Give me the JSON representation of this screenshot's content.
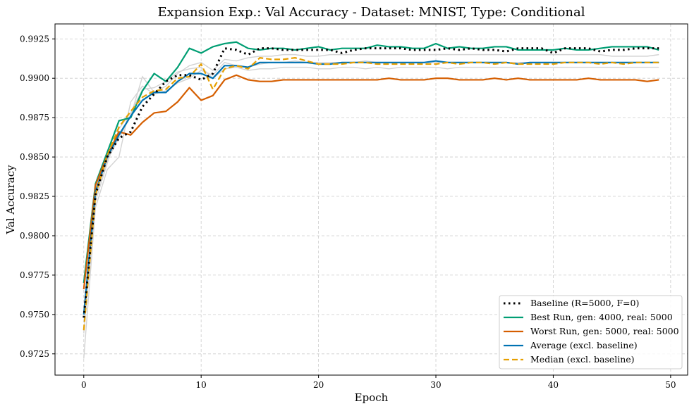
{
  "chart_data": {
    "type": "line",
    "title": "Expansion Exp.: Val Accuracy - Dataset: MNIST, Type: Conditional",
    "xlabel": "Epoch",
    "ylabel": "Val Accuracy",
    "xlim": [
      -2.45,
      51.45
    ],
    "ylim": [
      0.97115,
      0.99345
    ],
    "xticks": [
      0,
      10,
      20,
      30,
      40,
      50
    ],
    "xtick_labels": [
      "0",
      "10",
      "20",
      "30",
      "40",
      "50"
    ],
    "yticks": [
      0.9725,
      0.975,
      0.9775,
      0.98,
      0.9825,
      0.985,
      0.9875,
      0.99,
      0.9925
    ],
    "ytick_labels": [
      "0.9725",
      "0.9750",
      "0.9775",
      "0.9800",
      "0.9825",
      "0.9850",
      "0.9875",
      "0.9900",
      "0.9925"
    ],
    "grid": true,
    "legend_position": "bottom-right",
    "x": [
      0,
      1,
      2,
      3,
      4,
      5,
      6,
      7,
      8,
      9,
      10,
      11,
      12,
      13,
      14,
      15,
      16,
      17,
      18,
      19,
      20,
      21,
      22,
      23,
      24,
      25,
      26,
      27,
      28,
      29,
      30,
      31,
      32,
      33,
      34,
      35,
      36,
      37,
      38,
      39,
      40,
      41,
      42,
      43,
      44,
      45,
      46,
      47,
      48,
      49
    ],
    "background_series": [
      {
        "color": "#d3d3d3",
        "values": [
          0.9722,
          0.9818,
          0.9842,
          0.985,
          0.9885,
          0.9895,
          0.989,
          0.9892,
          0.9897,
          0.99,
          0.9905,
          0.9902,
          0.991,
          0.9908,
          0.9907,
          0.9909,
          0.991,
          0.991,
          0.9911,
          0.991,
          0.991,
          0.991,
          0.991,
          0.991,
          0.9911,
          0.991,
          0.991,
          0.991,
          0.991,
          0.991,
          0.991,
          0.991,
          0.991,
          0.991,
          0.991,
          0.991,
          0.991,
          0.991,
          0.991,
          0.991,
          0.991,
          0.991,
          0.991,
          0.991,
          0.991,
          0.991,
          0.991,
          0.991,
          0.991,
          0.991
        ]
      },
      {
        "color": "#d3d3d3",
        "values": [
          0.9745,
          0.9825,
          0.9848,
          0.9862,
          0.9876,
          0.9901,
          0.9891,
          0.9895,
          0.9903,
          0.9908,
          0.991,
          0.9905,
          0.9912,
          0.9911,
          0.9913,
          0.9914,
          0.9914,
          0.9915,
          0.9915,
          0.9914,
          0.9914,
          0.9915,
          0.9915,
          0.9915,
          0.9915,
          0.9915,
          0.9915,
          0.9915,
          0.9915,
          0.9915,
          0.9915,
          0.9915,
          0.9915,
          0.9915,
          0.9915,
          0.9915,
          0.9915,
          0.9915,
          0.9915,
          0.9915,
          0.9915,
          0.9915,
          0.9915,
          0.9915,
          0.9915,
          0.9914,
          0.9914,
          0.9914,
          0.9914,
          0.9915
        ]
      },
      {
        "color": "#d3d3d3",
        "values": [
          0.9738,
          0.9822,
          0.9846,
          0.9868,
          0.9878,
          0.9893,
          0.9894,
          0.9898,
          0.9904,
          0.9906,
          0.9907,
          0.99,
          0.9906,
          0.9907,
          0.9905,
          0.9906,
          0.9906,
          0.9907,
          0.9907,
          0.9907,
          0.9906,
          0.9906,
          0.9907,
          0.9907,
          0.9906,
          0.9907,
          0.9906,
          0.9907,
          0.9907,
          0.9907,
          0.9907,
          0.9906,
          0.9907,
          0.9907,
          0.9907,
          0.9907,
          0.9907,
          0.9907,
          0.9907,
          0.9907,
          0.9907,
          0.9907,
          0.9907,
          0.9907,
          0.9907,
          0.9907,
          0.9907,
          0.9907,
          0.9907,
          0.9907
        ]
      }
    ],
    "series": [
      {
        "name": "Baseline (R=5000, F=0)",
        "color": "#000000",
        "style": "dotted",
        "values": [
          0.9748,
          0.9826,
          0.985,
          0.9862,
          0.9866,
          0.9882,
          0.989,
          0.9898,
          0.9902,
          0.9902,
          0.9899,
          0.9903,
          0.9919,
          0.9918,
          0.9915,
          0.9919,
          0.9919,
          0.9918,
          0.9918,
          0.9918,
          0.9918,
          0.9918,
          0.9916,
          0.9918,
          0.9919,
          0.9919,
          0.9919,
          0.9919,
          0.9918,
          0.9918,
          0.9918,
          0.9919,
          0.9918,
          0.9919,
          0.9918,
          0.9918,
          0.9917,
          0.9919,
          0.9919,
          0.9919,
          0.9916,
          0.9919,
          0.9919,
          0.9919,
          0.9917,
          0.9918,
          0.9918,
          0.9919,
          0.9919,
          0.9919
        ]
      },
      {
        "name": "Best Run, gen: 4000, real: 5000",
        "color": "#009e73",
        "style": "solid",
        "values": [
          0.977,
          0.9833,
          0.9853,
          0.9873,
          0.9875,
          0.9892,
          0.9903,
          0.9898,
          0.9907,
          0.9919,
          0.9916,
          0.992,
          0.9922,
          0.9923,
          0.9919,
          0.9918,
          0.9919,
          0.9919,
          0.9918,
          0.9919,
          0.992,
          0.9918,
          0.9919,
          0.9919,
          0.9919,
          0.9921,
          0.992,
          0.992,
          0.9919,
          0.9919,
          0.9922,
          0.9919,
          0.992,
          0.9919,
          0.9919,
          0.992,
          0.992,
          0.9918,
          0.9918,
          0.9918,
          0.9918,
          0.9919,
          0.9918,
          0.9918,
          0.9919,
          0.992,
          0.992,
          0.992,
          0.992,
          0.9918
        ]
      },
      {
        "name": "Worst Run, gen: 5000, real: 5000",
        "color": "#d55e00",
        "style": "solid",
        "values": [
          0.9766,
          0.9832,
          0.9851,
          0.9866,
          0.9864,
          0.9872,
          0.9878,
          0.9879,
          0.9885,
          0.9894,
          0.9886,
          0.9889,
          0.9899,
          0.9902,
          0.9899,
          0.9898,
          0.9898,
          0.9899,
          0.9899,
          0.9899,
          0.9899,
          0.9899,
          0.9899,
          0.9899,
          0.9899,
          0.9899,
          0.99,
          0.9899,
          0.9899,
          0.9899,
          0.99,
          0.99,
          0.9899,
          0.9899,
          0.9899,
          0.99,
          0.9899,
          0.99,
          0.9899,
          0.9899,
          0.9899,
          0.9899,
          0.9899,
          0.99,
          0.9899,
          0.9899,
          0.9899,
          0.9899,
          0.9898,
          0.9899
        ]
      },
      {
        "name": "Average (excl. baseline)",
        "color": "#0072b2",
        "style": "solid",
        "values": [
          0.975,
          0.9828,
          0.985,
          0.9864,
          0.9876,
          0.9886,
          0.9891,
          0.9891,
          0.9898,
          0.9903,
          0.9903,
          0.99,
          0.9908,
          0.9908,
          0.9907,
          0.991,
          0.991,
          0.991,
          0.991,
          0.991,
          0.9909,
          0.9909,
          0.991,
          0.991,
          0.991,
          0.991,
          0.991,
          0.991,
          0.991,
          0.991,
          0.9911,
          0.991,
          0.991,
          0.991,
          0.991,
          0.991,
          0.991,
          0.9909,
          0.991,
          0.991,
          0.991,
          0.991,
          0.991,
          0.991,
          0.991,
          0.991,
          0.991,
          0.991,
          0.991,
          0.991
        ]
      },
      {
        "name": "Median (excl. baseline)",
        "color": "#e69f00",
        "style": "dashed",
        "values": [
          0.974,
          0.9826,
          0.9851,
          0.9869,
          0.9879,
          0.9888,
          0.9892,
          0.9893,
          0.99,
          0.9901,
          0.9909,
          0.9893,
          0.9906,
          0.9908,
          0.9906,
          0.9913,
          0.9912,
          0.9912,
          0.9913,
          0.9911,
          0.9909,
          0.9909,
          0.9909,
          0.991,
          0.991,
          0.9909,
          0.9909,
          0.9909,
          0.9909,
          0.9909,
          0.9909,
          0.991,
          0.9909,
          0.991,
          0.991,
          0.9909,
          0.991,
          0.9909,
          0.9909,
          0.9909,
          0.9909,
          0.991,
          0.991,
          0.991,
          0.9909,
          0.991,
          0.9909,
          0.991,
          0.991,
          0.991
        ]
      }
    ]
  }
}
